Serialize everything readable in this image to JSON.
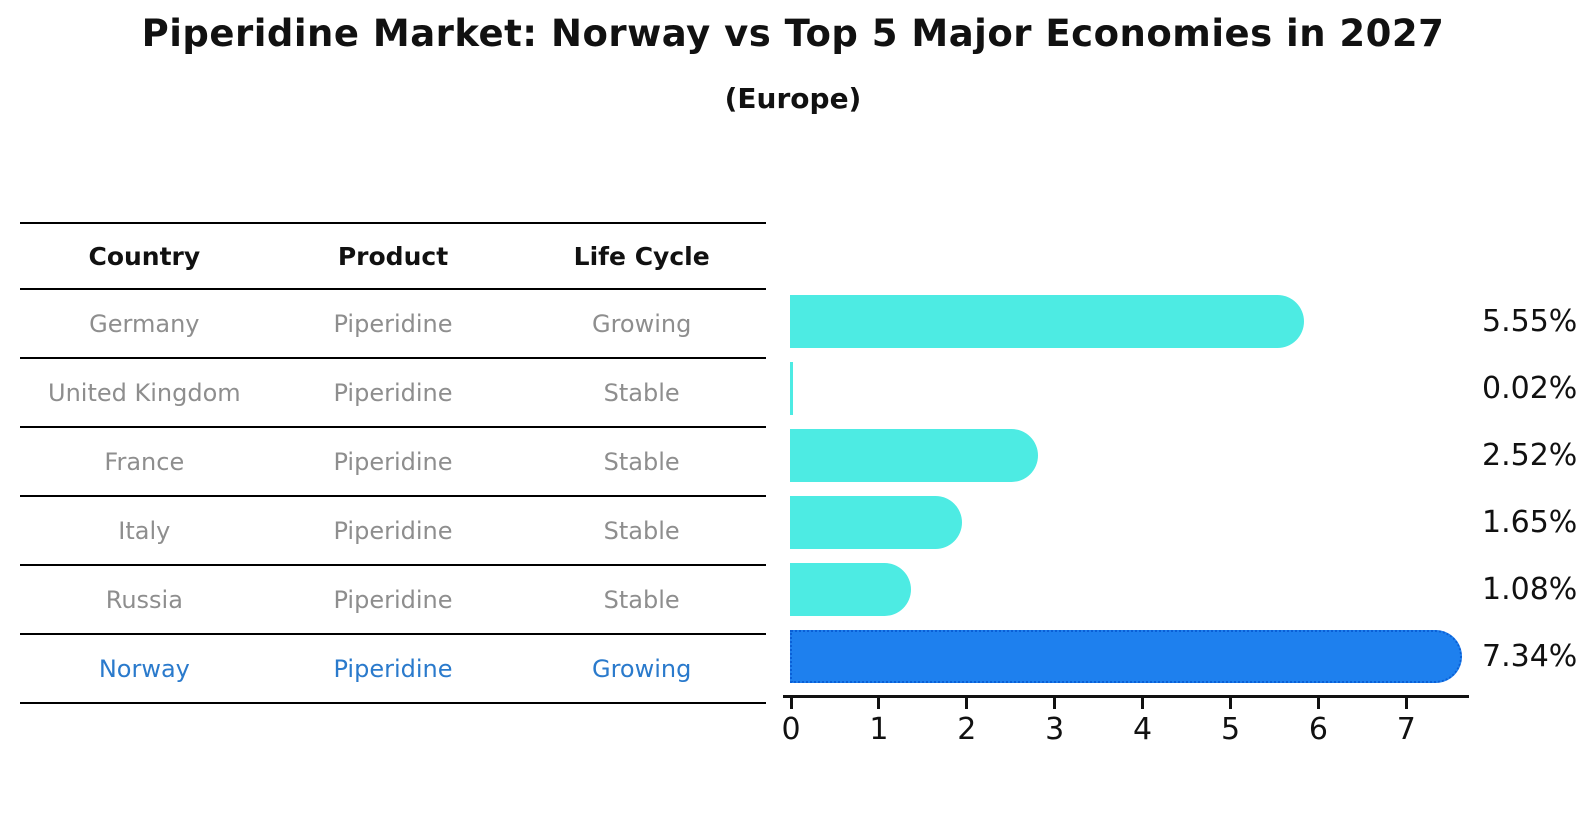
{
  "title": "Piperidine Market: Norway vs Top 5 Major Economies in 2027",
  "subtitle": "(Europe)",
  "table": {
    "headers": [
      "Country",
      "Product",
      "Life Cycle"
    ],
    "rows": [
      {
        "country": "Germany",
        "product": "Piperidine",
        "life_cycle": "Growing",
        "highlight": false
      },
      {
        "country": "United Kingdom",
        "product": "Piperidine",
        "life_cycle": "Stable",
        "highlight": false
      },
      {
        "country": "France",
        "product": "Piperidine",
        "life_cycle": "Stable",
        "highlight": false
      },
      {
        "country": "Italy",
        "product": "Piperidine",
        "life_cycle": "Stable",
        "highlight": false
      },
      {
        "country": "Russia",
        "product": "Piperidine",
        "life_cycle": "Stable",
        "highlight": false
      },
      {
        "country": "Norway",
        "product": "Piperidine",
        "life_cycle": "Growing",
        "highlight": true
      }
    ]
  },
  "chart_data": {
    "type": "bar",
    "orientation": "horizontal",
    "title": "Piperidine Market: Norway vs Top 5 Major Economies in 2027 (Europe)",
    "categories": [
      "Germany",
      "United Kingdom",
      "France",
      "Italy",
      "Russia",
      "Norway"
    ],
    "values": [
      5.55,
      0.02,
      2.52,
      1.65,
      1.08,
      7.34
    ],
    "value_labels": [
      "5.55%",
      "0.02%",
      "2.52%",
      "1.65%",
      "1.08%",
      "7.34%"
    ],
    "x_ticks": [
      0,
      1,
      2,
      3,
      4,
      5,
      6,
      7
    ],
    "xlim": [
      0,
      7.7
    ],
    "grid": false,
    "legend": null,
    "bar_color": "#4DEBE3",
    "highlight_index": 5,
    "highlight_color": "#1E80EE",
    "highlight_border_color": "#0A5FD6"
  },
  "colors": {
    "title": "#111111",
    "table_header": "#111111",
    "table_text": "#8e8e8e",
    "highlight_text": "#2A7ACC",
    "axis": "#111111"
  }
}
